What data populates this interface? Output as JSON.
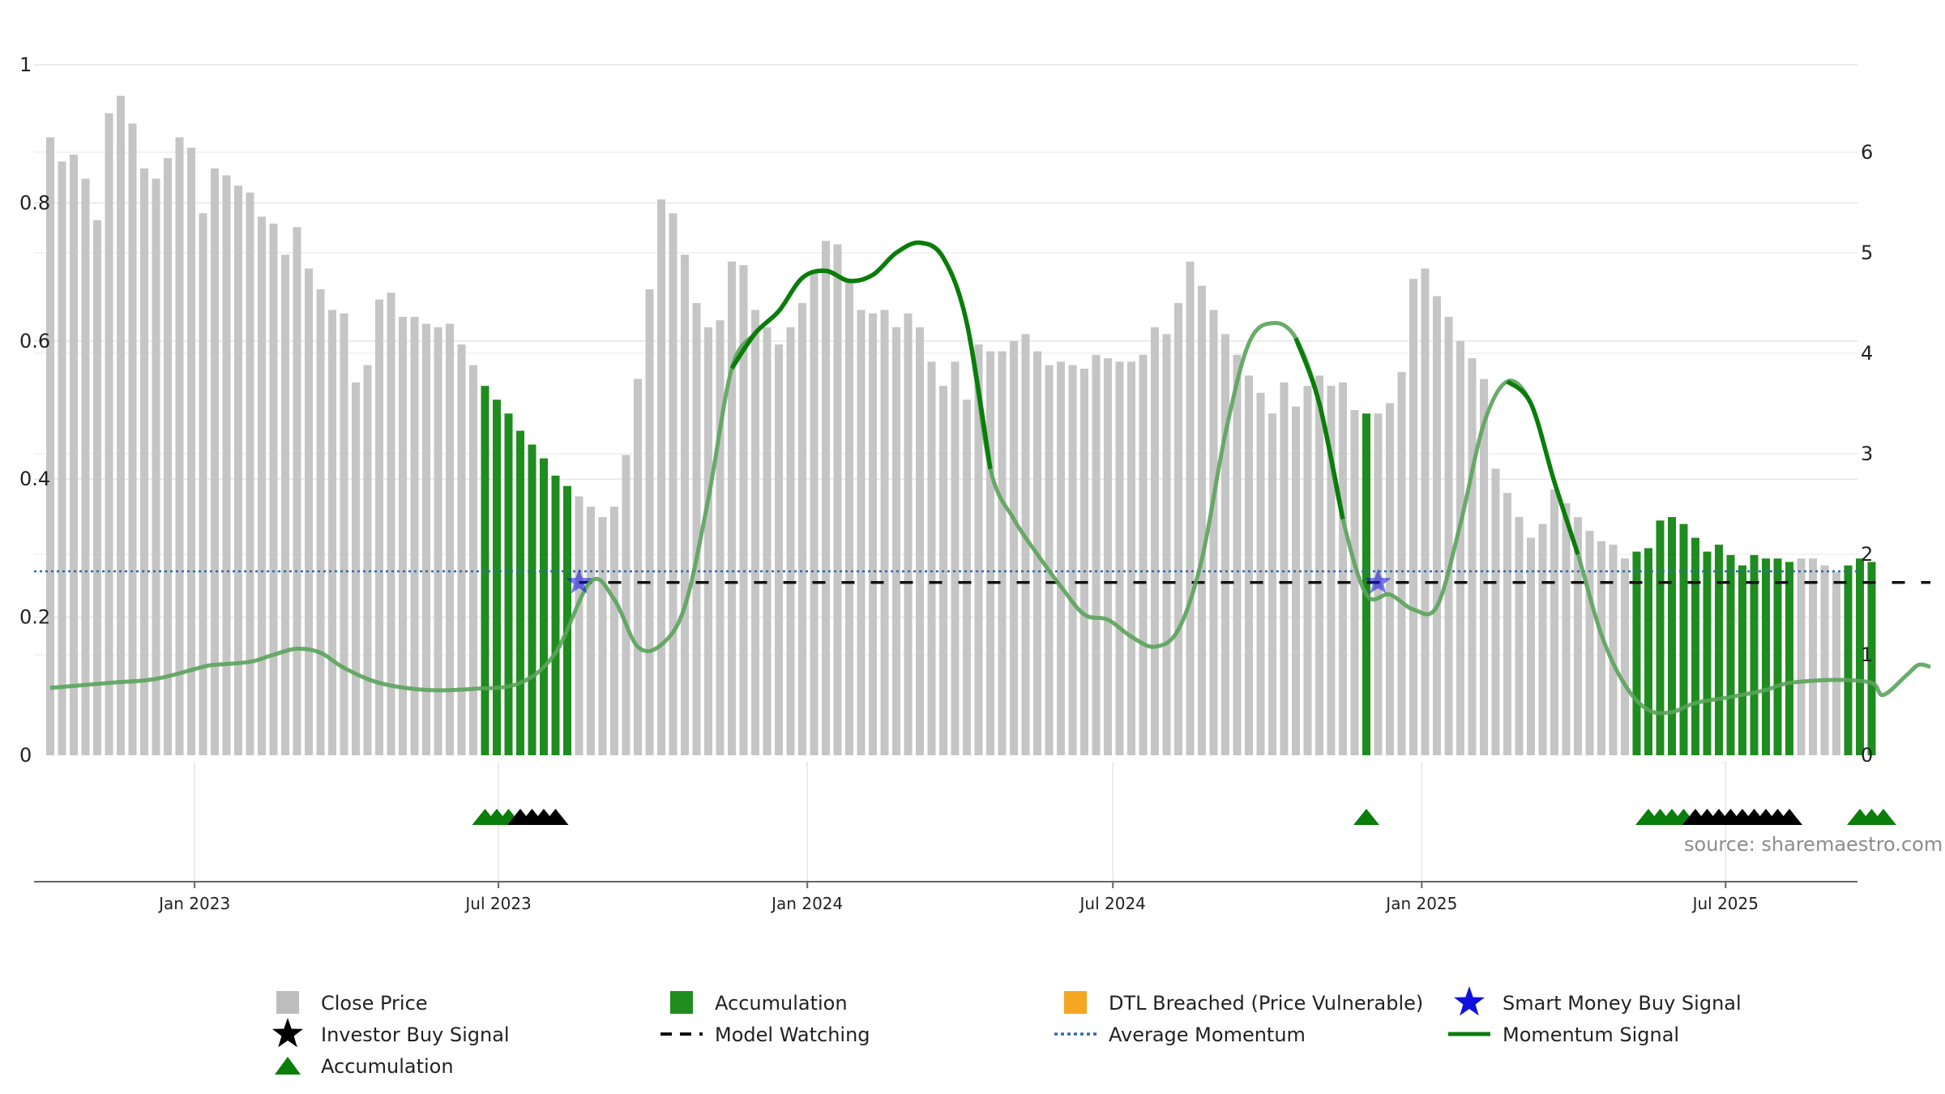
{
  "colors": {
    "close_price": "#c5c5c5",
    "accumulation": "#1f8c1f",
    "dtl": "#f5a623",
    "smart_money": "#1010e0",
    "investor": "#000000",
    "model_watching": "#111111",
    "avg_momentum": "#2b6cb0",
    "momentum": "#0a7d0a",
    "grid": "#e6e6e6",
    "axis": "#666666"
  },
  "source_text": "source: sharemaestro.com",
  "legend": [
    {
      "key": "close_price",
      "label": "Close Price",
      "icon": "square",
      "color": "#bdbdbd"
    },
    {
      "key": "accumulation_bar",
      "label": "Accumulation",
      "icon": "square",
      "color": "#1f8c1f"
    },
    {
      "key": "dtl",
      "label": "DTL Breached (Price Vulnerable)",
      "icon": "square",
      "color": "#f5a623"
    },
    {
      "key": "smart_money",
      "label": "Smart Money Buy Signal",
      "icon": "star",
      "color": "#1010e0"
    },
    {
      "key": "investor",
      "label": "Investor Buy Signal",
      "icon": "star",
      "color": "#000000"
    },
    {
      "key": "model_watching",
      "label": "Model Watching",
      "icon": "dash",
      "color": "#111111"
    },
    {
      "key": "avg_momentum",
      "label": "Average Momentum",
      "icon": "dot",
      "color": "#2b6cb0"
    },
    {
      "key": "momentum",
      "label": "Momentum Signal",
      "icon": "line",
      "color": "#0a7d0a"
    },
    {
      "key": "accumulation_marker",
      "label": "Accumulation",
      "icon": "triangle",
      "color": "#0a7d0a"
    }
  ],
  "chart_data": {
    "type": "bar",
    "x_start": "2022-10-07",
    "x_step_days": 7,
    "x_tick_labels": [
      "Jan 2023",
      "Jul 2023",
      "Jan 2024",
      "Jul 2024",
      "Jan 2025",
      "Jul 2025"
    ],
    "x_tick_dates": [
      "2023-01-01",
      "2023-07-01",
      "2024-01-01",
      "2024-07-01",
      "2025-01-01",
      "2025-07-01"
    ],
    "left_axis": {
      "ylim": [
        0,
        1
      ],
      "ticks": [
        0,
        0.2,
        0.4,
        0.6,
        0.8,
        1
      ],
      "tick_labels": [
        "0",
        "0.2",
        "0.4",
        "0.6",
        "0.8",
        "1"
      ]
    },
    "right_axis": {
      "ylim": [
        0,
        6.87
      ],
      "ticks": [
        0,
        1,
        2,
        3,
        4,
        5,
        6
      ],
      "tick_labels": [
        "0",
        "1",
        "2",
        "3",
        "4",
        "5",
        "6"
      ]
    },
    "grid": true,
    "legend_position": "bottom",
    "close_price": [
      0.895,
      0.86,
      0.87,
      0.835,
      0.775,
      0.93,
      0.955,
      0.915,
      0.85,
      0.835,
      0.865,
      0.895,
      0.88,
      0.785,
      0.85,
      0.84,
      0.825,
      0.815,
      0.78,
      0.77,
      0.725,
      0.765,
      0.705,
      0.675,
      0.645,
      0.64,
      0.54,
      0.565,
      0.66,
      0.67,
      0.635,
      0.635,
      0.625,
      0.62,
      0.625,
      0.595,
      0.565,
      0.535,
      0.515,
      0.495,
      0.47,
      0.45,
      0.43,
      0.405,
      0.39,
      0.375,
      0.36,
      0.345,
      0.36,
      0.435,
      0.545,
      0.675,
      0.805,
      0.785,
      0.725,
      0.655,
      0.62,
      0.63,
      0.715,
      0.71,
      0.645,
      0.62,
      0.595,
      0.62,
      0.655,
      0.7,
      0.745,
      0.74,
      0.69,
      0.645,
      0.64,
      0.645,
      0.62,
      0.64,
      0.62,
      0.57,
      0.535,
      0.57,
      0.515,
      0.595,
      0.585,
      0.585,
      0.6,
      0.61,
      0.585,
      0.565,
      0.57,
      0.565,
      0.56,
      0.58,
      0.575,
      0.57,
      0.57,
      0.58,
      0.62,
      0.61,
      0.655,
      0.715,
      0.68,
      0.645,
      0.61,
      0.58,
      0.55,
      0.525,
      0.495,
      0.54,
      0.505,
      0.535,
      0.55,
      0.535,
      0.54,
      0.5,
      0.495,
      0.495,
      0.51,
      0.555,
      0.69,
      0.705,
      0.665,
      0.635,
      0.6,
      0.575,
      0.545,
      0.415,
      0.38,
      0.345,
      0.315,
      0.335,
      0.385,
      0.365,
      0.345,
      0.325,
      0.31,
      0.305,
      0.285,
      0.295,
      0.3,
      0.34,
      0.345,
      0.335,
      0.315,
      0.295,
      0.305,
      0.29,
      0.275,
      0.29,
      0.285,
      0.285,
      0.28,
      0.285,
      0.285,
      0.275,
      0.265,
      0.275,
      0.285,
      0.28
    ],
    "accumulation_bar_indices": [
      37,
      38,
      39,
      40,
      41,
      42,
      43,
      44,
      112,
      135,
      136,
      137,
      138,
      139,
      140,
      141,
      142,
      143,
      144,
      145,
      146,
      147,
      148,
      153,
      154,
      155
    ],
    "momentum_signal": [
      [
        0,
        0.67
      ],
      [
        5,
        0.72
      ],
      [
        9,
        0.76
      ],
      [
        13,
        0.88
      ],
      [
        14,
        0.9
      ],
      [
        17,
        0.93
      ],
      [
        19,
        1.0
      ],
      [
        21,
        1.06
      ],
      [
        23,
        1.02
      ],
      [
        25,
        0.87
      ],
      [
        28,
        0.72
      ],
      [
        32,
        0.65
      ],
      [
        36,
        0.66
      ],
      [
        40,
        0.72
      ],
      [
        43,
        1.02
      ],
      [
        46,
        1.73
      ],
      [
        48,
        1.55
      ],
      [
        50,
        1.08
      ],
      [
        52,
        1.1
      ],
      [
        54,
        1.48
      ],
      [
        56,
        2.55
      ],
      [
        58,
        3.85
      ],
      [
        60,
        4.2
      ],
      [
        62,
        4.42
      ],
      [
        64,
        4.75
      ],
      [
        66,
        4.82
      ],
      [
        68,
        4.72
      ],
      [
        70,
        4.78
      ],
      [
        72,
        5.0
      ],
      [
        74,
        5.1
      ],
      [
        76,
        4.95
      ],
      [
        78,
        4.3
      ],
      [
        80,
        2.85
      ],
      [
        82,
        2.35
      ],
      [
        84,
        2.0
      ],
      [
        86,
        1.68
      ],
      [
        88,
        1.4
      ],
      [
        90,
        1.35
      ],
      [
        92,
        1.18
      ],
      [
        94,
        1.08
      ],
      [
        96,
        1.25
      ],
      [
        98,
        1.95
      ],
      [
        100,
        3.2
      ],
      [
        102,
        4.1
      ],
      [
        104,
        4.3
      ],
      [
        106,
        4.15
      ],
      [
        108,
        3.5
      ],
      [
        110,
        2.35
      ],
      [
        112,
        1.6
      ],
      [
        114,
        1.6
      ],
      [
        116,
        1.45
      ],
      [
        118,
        1.48
      ],
      [
        120,
        2.3
      ],
      [
        122,
        3.3
      ],
      [
        124,
        3.72
      ],
      [
        126,
        3.5
      ],
      [
        128,
        2.72
      ],
      [
        130,
        2.0
      ],
      [
        132,
        1.2
      ],
      [
        134,
        0.7
      ],
      [
        136,
        0.45
      ],
      [
        138,
        0.43
      ],
      [
        140,
        0.52
      ],
      [
        143,
        0.58
      ],
      [
        146,
        0.65
      ],
      [
        148,
        0.72
      ],
      [
        152,
        0.75
      ],
      [
        155,
        0.72
      ],
      [
        156,
        0.6
      ],
      [
        158,
        0.8
      ],
      [
        159,
        0.9
      ],
      [
        160,
        0.88
      ]
    ],
    "momentum_bold_segments": [
      [
        57,
        80
      ],
      [
        106,
        110
      ],
      [
        124,
        131
      ]
    ],
    "average_momentum": 1.83,
    "model_watching_level": 1.72,
    "model_watching_range": [
      45,
      160
    ],
    "smart_money_buy_signal": [
      [
        45,
        1.72
      ],
      [
        113,
        1.72
      ]
    ],
    "accumulation_marker_indices": [
      37,
      38,
      39,
      112,
      136,
      137,
      138,
      139,
      154,
      155,
      156
    ],
    "investor_buy_signal_indices": [
      40,
      41,
      42,
      43,
      140,
      141,
      142,
      143,
      144,
      145,
      146,
      147,
      148
    ]
  }
}
